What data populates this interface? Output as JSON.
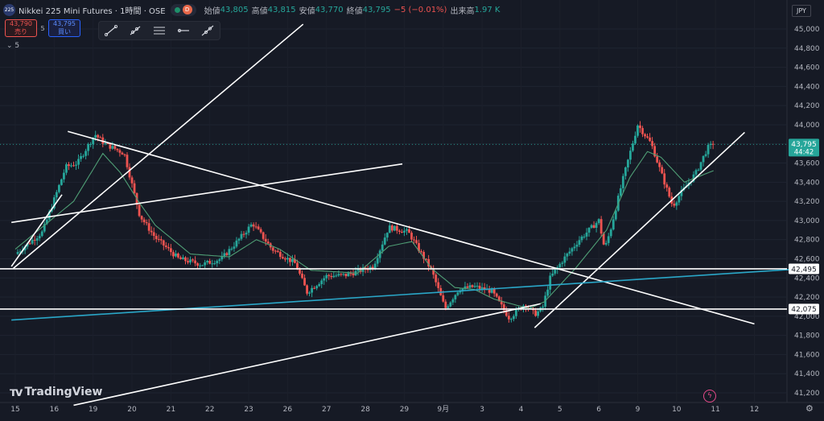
{
  "header": {
    "logo": "225",
    "symbol": "Nikkei 225 Mini Futures · 1時間 · OSE",
    "badge": "D",
    "open_label": "始値",
    "open": "43,805",
    "high_label": "高値",
    "high": "43,815",
    "low_label": "安値",
    "low": "43,770",
    "close_label": "終値",
    "close": "43,795",
    "change": "−5 (−0.01%)",
    "volume_label": "出来高",
    "volume": "1.97 K",
    "currency": "JPY"
  },
  "trade": {
    "sell_price": "43,790",
    "sell_label": "売り",
    "spread": "5",
    "buy_price": "43,795",
    "buy_label": "買い",
    "indicator_toggle": "5"
  },
  "toolbar": {
    "icons": [
      "trend-line-icon",
      "ray-icon",
      "parallel-channel-icon",
      "horizontal-ray-icon",
      "extended-line-icon"
    ]
  },
  "branding": {
    "logo_text": "TradingView"
  },
  "colors": {
    "background": "#161a25",
    "up": "#26a69a",
    "down": "#ef5350",
    "ma": "#4f9e75",
    "drawing": "#ffffff",
    "blue_line": "#2aa7c8"
  },
  "chart_data": {
    "type": "candlestick",
    "timeframe": "1時間",
    "ylim": [
      41060,
      45100
    ],
    "y_ticks": [
      41200,
      41400,
      41600,
      41800,
      42000,
      42200,
      42400,
      42600,
      42800,
      43000,
      43200,
      43400,
      43600,
      43800,
      44000,
      44200,
      44400,
      44600,
      44800,
      45000
    ],
    "y_tick_labels": [
      "41,200",
      "41,400",
      "41,600",
      "41,800",
      "42,000",
      "42,200",
      "42,400",
      "42,600",
      "42,800",
      "43,000",
      "43,200",
      "43,400",
      "43,600",
      "43,800",
      "44,000",
      "44,200",
      "44,400",
      "44,600",
      "44,800",
      "45,000"
    ],
    "x_labels": [
      "15",
      "16",
      "19",
      "20",
      "21",
      "22",
      "23",
      "26",
      "27",
      "28",
      "29",
      "9月",
      "3",
      "4",
      "5",
      "6",
      "9",
      "10",
      "11",
      "12"
    ],
    "x_label_index": [
      0,
      1,
      2,
      3,
      4,
      5,
      6,
      7,
      8,
      9,
      10,
      11,
      12,
      13,
      14,
      15,
      16,
      17,
      18,
      19
    ],
    "price_anchors": [
      [
        0,
        42650
      ],
      [
        0.7,
        42880
      ],
      [
        1.3,
        43560
      ],
      [
        1.6,
        43600
      ],
      [
        2.05,
        43900
      ],
      [
        2.3,
        43800
      ],
      [
        2.8,
        43700
      ],
      [
        3.2,
        43050
      ],
      [
        3.6,
        42820
      ],
      [
        4.2,
        42600
      ],
      [
        4.8,
        42540
      ],
      [
        5.3,
        42600
      ],
      [
        5.7,
        42780
      ],
      [
        6.1,
        42970
      ],
      [
        6.6,
        42700
      ],
      [
        7.2,
        42550
      ],
      [
        7.5,
        42250
      ],
      [
        8.0,
        42420
      ],
      [
        8.5,
        42430
      ],
      [
        9.2,
        42520
      ],
      [
        9.6,
        42930
      ],
      [
        10.1,
        42880
      ],
      [
        10.7,
        42480
      ],
      [
        11.05,
        42080
      ],
      [
        11.4,
        42280
      ],
      [
        11.8,
        42310
      ],
      [
        12.25,
        42260
      ],
      [
        12.7,
        41980
      ],
      [
        13.1,
        42130
      ],
      [
        13.35,
        42020
      ],
      [
        13.55,
        42080
      ],
      [
        13.75,
        42400
      ],
      [
        14.1,
        42600
      ],
      [
        14.5,
        42800
      ],
      [
        15.0,
        43000
      ],
      [
        15.15,
        42700
      ],
      [
        15.3,
        42900
      ],
      [
        15.6,
        43400
      ],
      [
        16.0,
        44000
      ],
      [
        16.35,
        43800
      ],
      [
        16.6,
        43500
      ],
      [
        16.9,
        43150
      ],
      [
        17.1,
        43280
      ],
      [
        17.5,
        43500
      ],
      [
        17.8,
        43760
      ],
      [
        17.95,
        43795
      ]
    ],
    "ma_anchors": [
      [
        0,
        42700
      ],
      [
        1.5,
        43200
      ],
      [
        2.25,
        43700
      ],
      [
        2.7,
        43500
      ],
      [
        3.2,
        43180
      ],
      [
        3.6,
        42950
      ],
      [
        4.5,
        42650
      ],
      [
        5.5,
        42620
      ],
      [
        6.2,
        42800
      ],
      [
        6.8,
        42700
      ],
      [
        7.6,
        42480
      ],
      [
        8.8,
        42450
      ],
      [
        9.6,
        42730
      ],
      [
        10.2,
        42780
      ],
      [
        10.7,
        42500
      ],
      [
        11.3,
        42300
      ],
      [
        11.8,
        42280
      ],
      [
        12.3,
        42180
      ],
      [
        13.2,
        42080
      ],
      [
        13.6,
        42150
      ],
      [
        14.4,
        42500
      ],
      [
        15.2,
        42900
      ],
      [
        15.8,
        43450
      ],
      [
        16.25,
        43720
      ],
      [
        16.6,
        43660
      ],
      [
        17.2,
        43400
      ],
      [
        17.7,
        43480
      ],
      [
        17.95,
        43520
      ]
    ],
    "horizontal_lines": [
      {
        "price": 42495,
        "label": "42,495"
      },
      {
        "price": 42075,
        "label": "42,075"
      }
    ],
    "trend_lines": [
      {
        "from": [
          -0.05,
          42500
        ],
        "to": [
          7.4,
          45050
        ]
      },
      {
        "from": [
          -0.1,
          42980
        ],
        "to": [
          9.95,
          43590
        ]
      },
      {
        "from": [
          1.35,
          43930
        ],
        "to": [
          19.0,
          41920
        ]
      },
      {
        "from": [
          -0.1,
          42520
        ],
        "to": [
          1.2,
          43270
        ]
      },
      {
        "from": [
          1.5,
          41070
        ],
        "to": [
          13.5,
          42130
        ]
      },
      {
        "from": [
          13.35,
          41880
        ],
        "to": [
          18.75,
          43920
        ]
      },
      {
        "from": [
          -0.1,
          41960
        ],
        "to": [
          20.0,
          42490
        ]
      }
    ],
    "last_price": {
      "value": "43,795",
      "countdown": "44:42"
    }
  }
}
